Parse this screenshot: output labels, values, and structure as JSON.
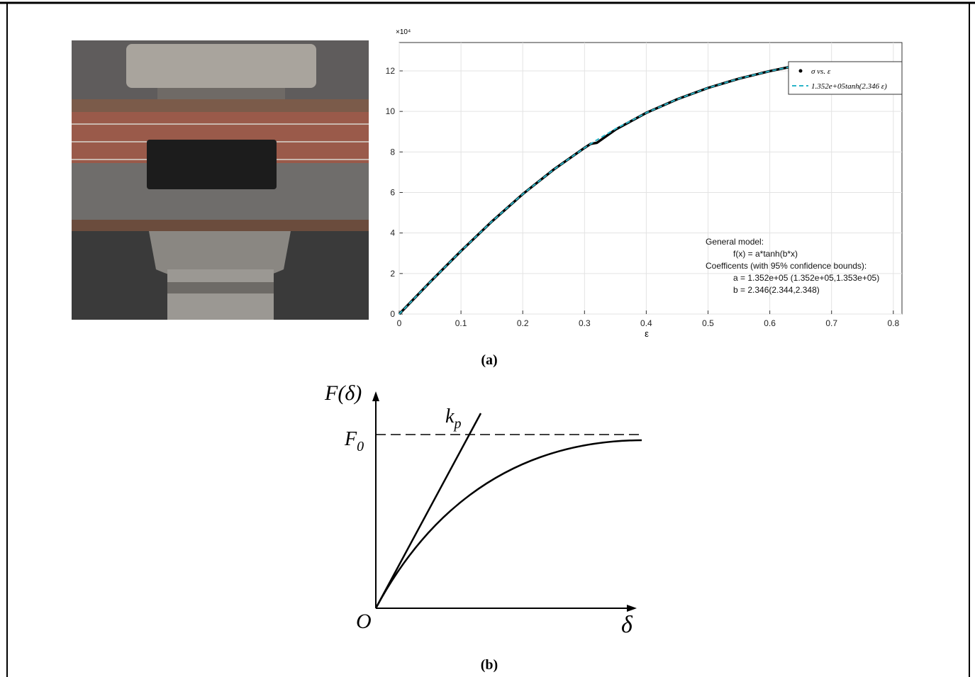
{
  "chart_data": {
    "type": "line",
    "y_multiplier": "×10⁴",
    "x_label": "ε",
    "x": [
      0,
      0.05,
      0.1,
      0.15,
      0.2,
      0.25,
      0.3,
      0.31,
      0.32,
      0.35,
      0.4,
      0.45,
      0.5,
      0.55,
      0.6,
      0.63
    ],
    "series": [
      {
        "name": "σ vs. ε",
        "color": "#000000",
        "values": [
          0,
          1.58,
          3.11,
          4.57,
          5.92,
          7.13,
          8.2,
          8.4,
          8.45,
          9.1,
          9.93,
          10.6,
          11.16,
          11.62,
          11.99,
          12.18
        ]
      },
      {
        "name": "1.352e+05tanh(2.346 ε)",
        "color": "#2bb5c8",
        "values": [
          0,
          1.58,
          3.11,
          4.57,
          5.92,
          7.13,
          8.2,
          8.4,
          8.59,
          9.14,
          9.93,
          10.6,
          11.16,
          11.62,
          11.99,
          12.18
        ]
      }
    ],
    "xlim": [
      0,
      0.814
    ],
    "ylim": [
      0,
      13.4
    ],
    "xticks": [
      0,
      0.1,
      0.2,
      0.3,
      0.4,
      0.5,
      0.6,
      0.7,
      0.8
    ],
    "yticks": [
      0,
      2,
      4,
      6,
      8,
      10,
      12
    ],
    "grid": true,
    "legend": "top-right",
    "annotations": [
      "General model:",
      "f(x) = a*tanh(b*x)",
      "Coefficents (with 95% confidence bounds):",
      "a = 1.352e+05 (1.352e+05,1.353e+05)",
      "b = 2.346(2.344,2.348)"
    ],
    "caption": "(a)"
  },
  "diagram": {
    "y_axis_label": "F(δ)",
    "x_axis_label": "δ",
    "origin_label": "O",
    "slope_label": {
      "main": "k",
      "sub": "p"
    },
    "asymptote_label": {
      "main": "F",
      "sub": "0"
    },
    "caption": "(b)"
  }
}
